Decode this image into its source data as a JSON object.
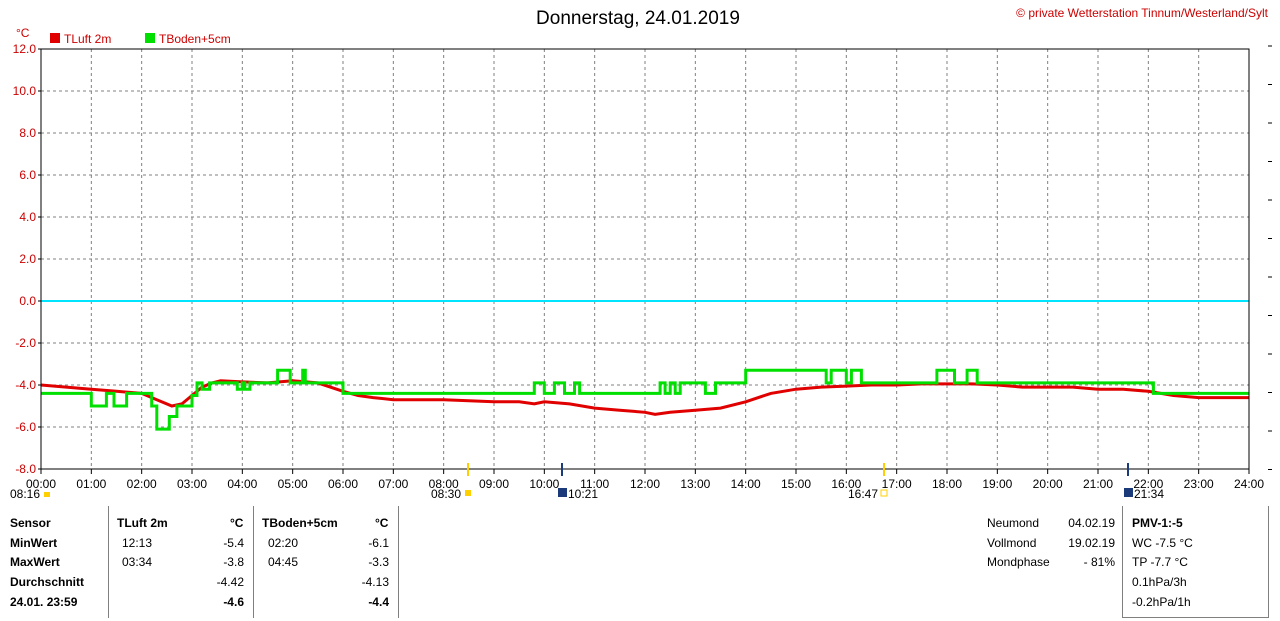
{
  "header": {
    "title": "Donnerstag, 24.01.2019",
    "copyright": "© private Wetterstation Tinnum/Westerland/Sylt"
  },
  "chart_data": {
    "type": "line",
    "title": "Donnerstag, 24.01.2019",
    "ylabel": "°C",
    "ylim": [
      -8,
      12
    ],
    "yticks": [
      "12.0",
      "10.0",
      "8.0",
      "6.0",
      "4.0",
      "2.0",
      "0.0",
      "-2.0",
      "-4.0",
      "-6.0",
      "-8.0"
    ],
    "xlim": [
      0,
      24
    ],
    "xticks": [
      "00:00",
      "01:00",
      "02:00",
      "03:00",
      "04:00",
      "05:00",
      "06:00",
      "07:00",
      "08:00",
      "09:00",
      "10:00",
      "11:00",
      "12:00",
      "13:00",
      "14:00",
      "15:00",
      "16:00",
      "17:00",
      "18:00",
      "19:00",
      "20:00",
      "21:00",
      "22:00",
      "23:00",
      "24:00"
    ],
    "grid": true,
    "legend_position": "top-left",
    "zero_line_color": "#00e5ff",
    "series": [
      {
        "name": "TLuft 2m",
        "color": "#e00000",
        "points": [
          [
            0,
            -4.0
          ],
          [
            0.5,
            -4.1
          ],
          [
            1,
            -4.2
          ],
          [
            1.5,
            -4.3
          ],
          [
            2,
            -4.4
          ],
          [
            2.3,
            -4.7
          ],
          [
            2.6,
            -5.0
          ],
          [
            2.8,
            -4.9
          ],
          [
            3.0,
            -4.5
          ],
          [
            3.2,
            -4.1
          ],
          [
            3.4,
            -3.9
          ],
          [
            3.57,
            -3.8
          ],
          [
            4.0,
            -3.85
          ],
          [
            4.5,
            -3.9
          ],
          [
            5.0,
            -3.8
          ],
          [
            5.5,
            -3.9
          ],
          [
            6.0,
            -4.3
          ],
          [
            6.3,
            -4.5
          ],
          [
            6.6,
            -4.6
          ],
          [
            7.0,
            -4.7
          ],
          [
            7.5,
            -4.7
          ],
          [
            8.0,
            -4.7
          ],
          [
            8.5,
            -4.75
          ],
          [
            9.0,
            -4.8
          ],
          [
            9.5,
            -4.8
          ],
          [
            9.8,
            -4.9
          ],
          [
            10.0,
            -4.8
          ],
          [
            10.5,
            -4.9
          ],
          [
            11.0,
            -5.1
          ],
          [
            11.5,
            -5.2
          ],
          [
            12.0,
            -5.3
          ],
          [
            12.2,
            -5.4
          ],
          [
            12.5,
            -5.3
          ],
          [
            13.0,
            -5.2
          ],
          [
            13.5,
            -5.1
          ],
          [
            14.0,
            -4.8
          ],
          [
            14.5,
            -4.4
          ],
          [
            15.0,
            -4.2
          ],
          [
            15.5,
            -4.1
          ],
          [
            16.0,
            -4.05
          ],
          [
            16.5,
            -4.0
          ],
          [
            17.0,
            -4.0
          ],
          [
            17.5,
            -3.95
          ],
          [
            18.0,
            -3.95
          ],
          [
            18.5,
            -3.95
          ],
          [
            19.0,
            -4.0
          ],
          [
            19.5,
            -4.1
          ],
          [
            20.0,
            -4.1
          ],
          [
            20.5,
            -4.1
          ],
          [
            21.0,
            -4.2
          ],
          [
            21.5,
            -4.2
          ],
          [
            22.0,
            -4.3
          ],
          [
            22.5,
            -4.5
          ],
          [
            23.0,
            -4.6
          ],
          [
            24.0,
            -4.6
          ]
        ]
      },
      {
        "name": "TBoden+5cm",
        "color": "#00e000",
        "points": [
          [
            0,
            -4.4
          ],
          [
            1.0,
            -4.4
          ],
          [
            1.0,
            -5.0
          ],
          [
            1.3,
            -5.0
          ],
          [
            1.3,
            -4.4
          ],
          [
            1.45,
            -4.4
          ],
          [
            1.45,
            -5.0
          ],
          [
            1.7,
            -5.0
          ],
          [
            1.7,
            -4.4
          ],
          [
            2.2,
            -4.4
          ],
          [
            2.2,
            -5.0
          ],
          [
            2.3,
            -5.0
          ],
          [
            2.3,
            -6.1
          ],
          [
            2.55,
            -6.1
          ],
          [
            2.55,
            -5.5
          ],
          [
            2.7,
            -5.5
          ],
          [
            2.7,
            -5.0
          ],
          [
            3.0,
            -5.0
          ],
          [
            3.0,
            -4.5
          ],
          [
            3.1,
            -4.5
          ],
          [
            3.1,
            -3.9
          ],
          [
            3.2,
            -3.9
          ],
          [
            3.2,
            -4.2
          ],
          [
            3.35,
            -4.2
          ],
          [
            3.35,
            -3.9
          ],
          [
            3.9,
            -3.9
          ],
          [
            3.9,
            -4.2
          ],
          [
            4.0,
            -4.2
          ],
          [
            4.0,
            -3.9
          ],
          [
            4.05,
            -3.9
          ],
          [
            4.05,
            -4.2
          ],
          [
            4.15,
            -4.2
          ],
          [
            4.15,
            -3.9
          ],
          [
            4.7,
            -3.9
          ],
          [
            4.7,
            -3.3
          ],
          [
            4.95,
            -3.3
          ],
          [
            4.95,
            -3.9
          ],
          [
            5.2,
            -3.9
          ],
          [
            5.2,
            -3.3
          ],
          [
            5.25,
            -3.3
          ],
          [
            5.25,
            -3.9
          ],
          [
            6.0,
            -3.9
          ],
          [
            6.0,
            -4.4
          ],
          [
            9.8,
            -4.4
          ],
          [
            9.8,
            -3.9
          ],
          [
            10.0,
            -3.9
          ],
          [
            10.0,
            -4.4
          ],
          [
            10.2,
            -4.4
          ],
          [
            10.2,
            -3.9
          ],
          [
            10.4,
            -3.9
          ],
          [
            10.4,
            -4.4
          ],
          [
            10.6,
            -4.4
          ],
          [
            10.6,
            -3.9
          ],
          [
            10.7,
            -3.9
          ],
          [
            10.7,
            -4.4
          ],
          [
            12.3,
            -4.4
          ],
          [
            12.3,
            -3.9
          ],
          [
            12.4,
            -3.9
          ],
          [
            12.4,
            -4.4
          ],
          [
            12.5,
            -4.4
          ],
          [
            12.5,
            -3.9
          ],
          [
            12.6,
            -3.9
          ],
          [
            12.6,
            -4.4
          ],
          [
            12.7,
            -4.4
          ],
          [
            12.7,
            -3.9
          ],
          [
            13.2,
            -3.9
          ],
          [
            13.2,
            -4.4
          ],
          [
            13.4,
            -4.4
          ],
          [
            13.4,
            -3.9
          ],
          [
            14.0,
            -3.9
          ],
          [
            14.0,
            -3.3
          ],
          [
            15.6,
            -3.3
          ],
          [
            15.6,
            -3.9
          ],
          [
            15.7,
            -3.9
          ],
          [
            15.7,
            -3.3
          ],
          [
            16.0,
            -3.3
          ],
          [
            16.0,
            -3.9
          ],
          [
            16.1,
            -3.9
          ],
          [
            16.1,
            -3.3
          ],
          [
            16.3,
            -3.3
          ],
          [
            16.3,
            -3.9
          ],
          [
            17.8,
            -3.9
          ],
          [
            17.8,
            -3.3
          ],
          [
            18.15,
            -3.3
          ],
          [
            18.15,
            -3.9
          ],
          [
            18.4,
            -3.9
          ],
          [
            18.4,
            -3.3
          ],
          [
            18.6,
            -3.3
          ],
          [
            18.6,
            -3.9
          ],
          [
            22.1,
            -3.9
          ],
          [
            22.1,
            -4.4
          ],
          [
            24.0,
            -4.4
          ]
        ]
      }
    ]
  },
  "sun_moon": {
    "sunrise_left": "08:16",
    "sunrise_mid": "08:30",
    "moon_a": "10:21",
    "sunset": "16:47",
    "moon_b": "21:34"
  },
  "stats": {
    "header": {
      "sensor": "Sensor",
      "s1": "TLuft 2m",
      "unit1": "°C",
      "s2": "TBoden+5cm",
      "unit2": "°C"
    },
    "rows": [
      {
        "label": "MinWert",
        "t1": "12:13",
        "v1": "-5.4",
        "t2": "02:20",
        "v2": "-6.1"
      },
      {
        "label": "MaxWert",
        "t1": "03:34",
        "v1": "-3.8",
        "t2": "04:45",
        "v2": "-3.3"
      },
      {
        "label": "Durchschnitt",
        "t1": "",
        "v1": "-4.42",
        "t2": "",
        "v2": "-4.13"
      },
      {
        "label": "24.01. 23:59",
        "t1": "",
        "v1": "-4.6",
        "t2": "",
        "v2": "-4.4"
      }
    ]
  },
  "moon": {
    "rows": [
      {
        "label": "Neumond",
        "value": "04.02.19"
      },
      {
        "label": "Vollmond",
        "value": "19.02.19"
      },
      {
        "label": "Mondphase",
        "value": "- 81%"
      }
    ]
  },
  "pmv": {
    "title": "PMV-1:-5",
    "lines": [
      "WC -7.5 °C",
      "TP -7.7 °C",
      "0.1hPa/3h",
      "-0.2hPa/1h"
    ]
  }
}
